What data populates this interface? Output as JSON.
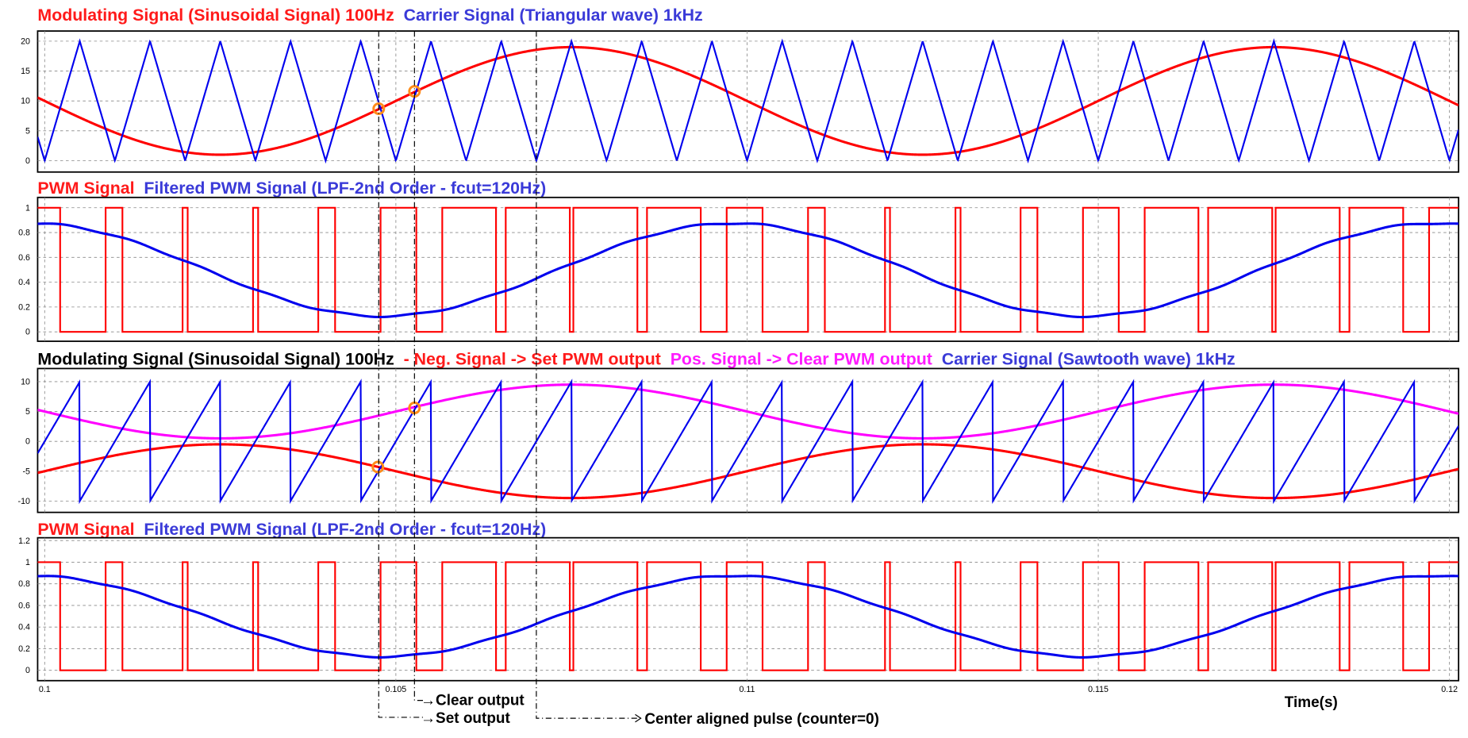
{
  "chart_data": {
    "type": "line",
    "xlabel": "Time(s)",
    "xlim": [
      0.0999,
      0.12013
    ],
    "xticks": [
      0.1,
      0.105,
      0.11,
      0.115,
      0.12
    ],
    "xtick_labels": [
      "0.1",
      "0.105",
      "0.11",
      "0.115",
      "0.12"
    ],
    "grid": true,
    "subplots": [
      {
        "title_segments": [
          {
            "text": "Modulating Signal (Sinusoidal Signal) 100Hz",
            "color": "#ff1a1a"
          },
          {
            "text": "Carrier Signal (Triangular wave) 1kHz",
            "color": "#3a3ad8"
          }
        ],
        "ylim": [
          -1.9,
          21.7
        ],
        "yticks": [
          0,
          5,
          10,
          15,
          20
        ],
        "series": [
          {
            "name": "Modulating Signal",
            "kind": "sine",
            "freq_hz": 100,
            "offset": 10,
            "amplitude": -9,
            "color": "#ff0000"
          },
          {
            "name": "Carrier Signal (Triangular)",
            "kind": "triangle",
            "freq_hz": 1000,
            "min": 0,
            "max": 20,
            "color": "#0000ee"
          }
        ],
        "markers": [
          {
            "t": 0.104756,
            "y": 8.7
          },
          {
            "t": 0.105265,
            "y": 11.6
          }
        ]
      },
      {
        "title_segments": [
          {
            "text": "PWM Signal",
            "color": "#ff1a1a"
          },
          {
            "text": "Filtered PWM Signal (LPF-2nd Order - fcut=120Hz)",
            "color": "#3a3ad8"
          }
        ],
        "ylim": [
          -0.076,
          1.083
        ],
        "yticks": [
          0,
          0.2,
          0.4,
          0.6,
          0.8,
          1
        ],
        "series": [
          {
            "name": "PWM Signal",
            "kind": "pwm",
            "color": "#ff0000"
          },
          {
            "name": "Filtered PWM Signal",
            "kind": "filtered",
            "mean": 0.5,
            "amplitude": -0.375,
            "lag_s": 0.0023,
            "color": "#0000ee"
          }
        ]
      },
      {
        "title_segments": [
          {
            "text": "Modulating Signal (Sinusoidal Signal) 100Hz",
            "color": "#000000"
          },
          {
            "text": "- Neg. Signal -> Set PWM output",
            "color": "#ff1a1a"
          },
          {
            "text": "Pos. Signal -> Clear PWM output",
            "color": "#ff1aff"
          },
          {
            "text": "Carrier Signal (Sawtooth wave) 1kHz",
            "color": "#3a3ad8"
          }
        ],
        "ylim": [
          -11.9,
          12.2
        ],
        "yticks": [
          -10,
          -5,
          0,
          5,
          10
        ],
        "series": [
          {
            "name": "Pos. Signal",
            "kind": "sine",
            "freq_hz": 100,
            "offset": 5,
            "amplitude": -4.5,
            "color": "#ff00ff"
          },
          {
            "name": "Neg. Signal",
            "kind": "sine",
            "freq_hz": 100,
            "offset": -5,
            "amplitude": 4.5,
            "color": "#ff0000"
          },
          {
            "name": "Carrier Signal (Sawtooth)",
            "kind": "sawtooth",
            "freq_hz": 1000,
            "min": -10,
            "max": 10,
            "phase_s": 0.0995,
            "color": "#0000ee"
          }
        ],
        "markers": [
          {
            "t": 0.105265,
            "y": 5.6
          },
          {
            "t": 0.104744,
            "y": -4.3
          }
        ]
      },
      {
        "title_segments": [
          {
            "text": "PWM Signal",
            "color": "#ff1a1a"
          },
          {
            "text": "Filtered PWM Signal (LPF-2nd Order - fcut=120Hz)",
            "color": "#3a3ad8"
          }
        ],
        "ylim": [
          -0.096,
          1.226
        ],
        "yticks": [
          0,
          0.2,
          0.4,
          0.6,
          0.8,
          1,
          1.2
        ],
        "series": [
          {
            "name": "PWM Signal",
            "kind": "pwm",
            "color": "#ff0000"
          },
          {
            "name": "Filtered PWM Signal",
            "kind": "filtered",
            "mean": 0.5,
            "amplitude": -0.375,
            "lag_s": 0.0023,
            "color": "#0000ee"
          }
        ]
      }
    ],
    "annotations": {
      "clear_output": "Clear output",
      "set_output": "Set output",
      "center_pulse": "Center aligned pulse (counter=0)",
      "clear_t": 0.105265,
      "set_t": 0.104756,
      "center_t": 0.107
    },
    "marker_color": "#ff8c1a"
  }
}
